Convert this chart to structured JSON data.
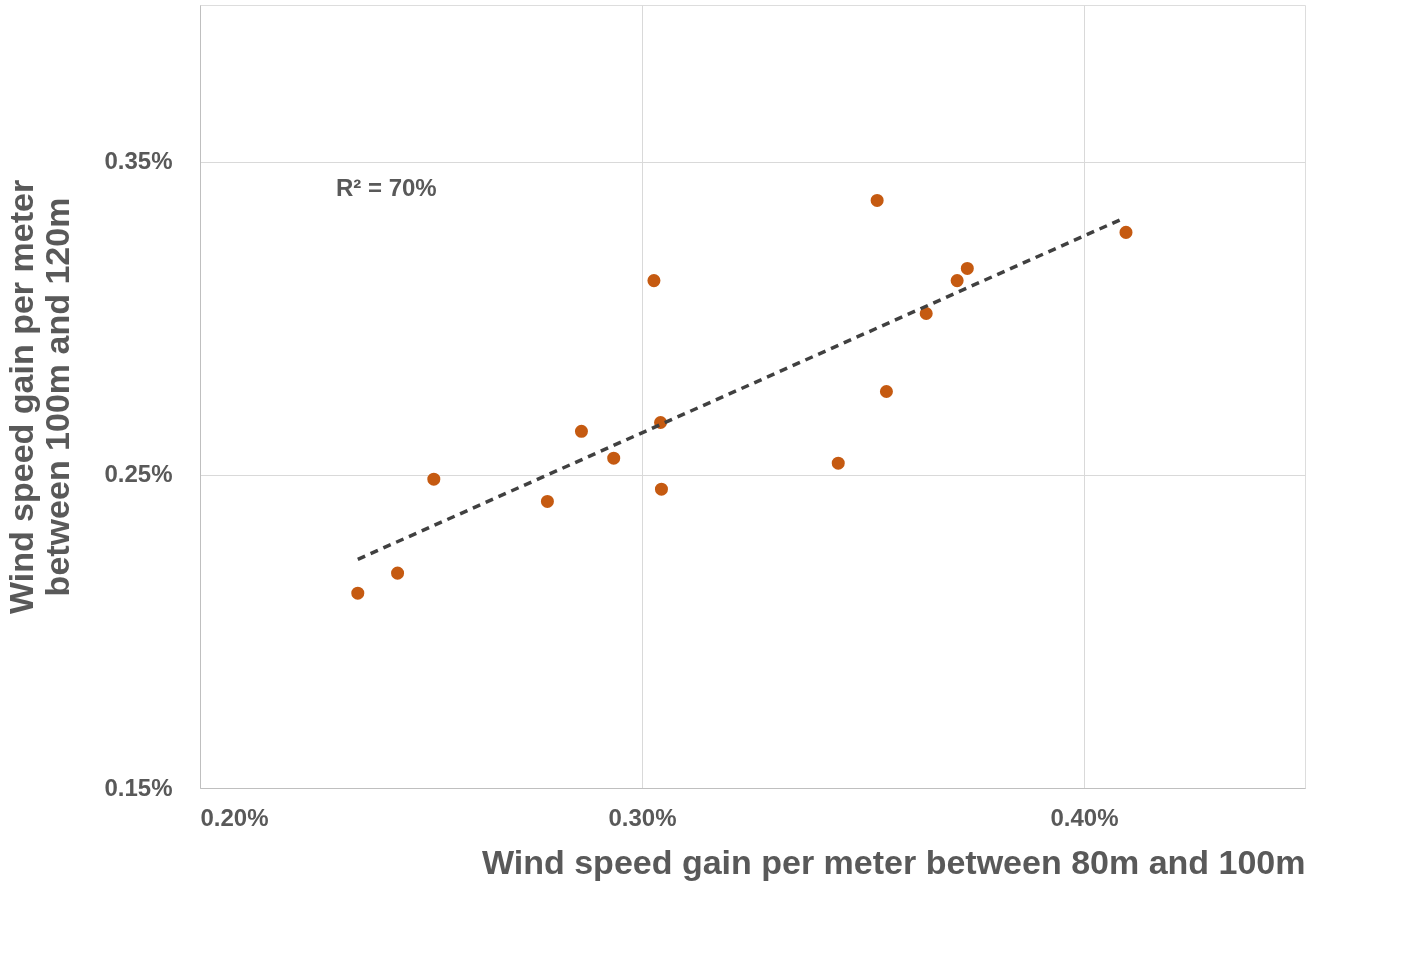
{
  "chart_data": {
    "type": "scatter",
    "xlabel": "Wind speed gain per meter between 80m and 100m",
    "ylabel": "Wind speed gain per meter between 100m and 120m",
    "xlim": [
      0.2,
      0.45
    ],
    "ylim": [
      0.15,
      0.4
    ],
    "xticks": [
      {
        "value": 0.2,
        "label": "0.20%"
      },
      {
        "value": 0.3,
        "label": "0.30%"
      },
      {
        "value": 0.4,
        "label": "0.40%"
      }
    ],
    "yticks": [
      {
        "value": 0.15,
        "label": "0.15%"
      },
      {
        "value": 0.25,
        "label": "0.25%"
      },
      {
        "value": 0.35,
        "label": "0.35%"
      }
    ],
    "grid": true,
    "marker": "circle",
    "annotations": [
      "R² = 70%"
    ],
    "series": [
      {
        "color": "#c55a11",
        "x": [
          0.2357,
          0.2447,
          0.2529,
          0.2786,
          0.2863,
          0.2936,
          0.3027,
          0.3042,
          0.3044,
          0.3444,
          0.3532,
          0.3553,
          0.3643,
          0.3713,
          0.3736,
          0.4095
        ],
        "values": [
          0.2122,
          0.2186,
          0.2486,
          0.2415,
          0.2639,
          0.2553,
          0.312,
          0.2667,
          0.2454,
          0.2537,
          0.3376,
          0.2766,
          0.3015,
          0.312,
          0.3159,
          0.3274
        ]
      },
      {
        "type": "line",
        "color": "#404040",
        "line_style": "dashed",
        "marker": "none",
        "x": [
          0.2357,
          0.4088
        ],
        "values": [
          0.223,
          0.3318
        ]
      }
    ]
  }
}
